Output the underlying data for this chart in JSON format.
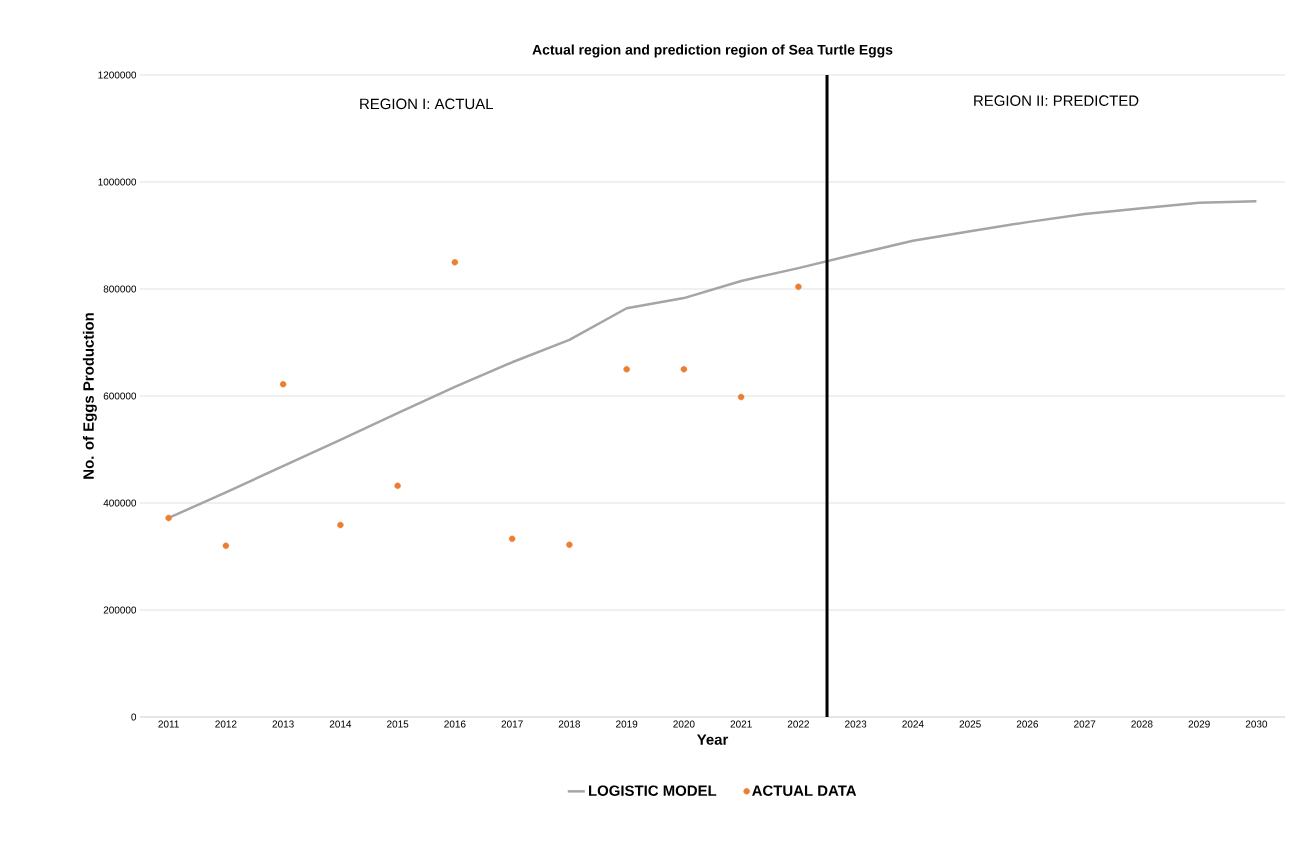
{
  "chart_data": {
    "type": "line",
    "title": "Actual region and prediction region of Sea Turtle Eggs",
    "xlabel": "Year",
    "ylabel": "No. of Eggs Production",
    "xlim": [
      2010.5,
      2030.5
    ],
    "xticks": [
      2011,
      2012,
      2013,
      2014,
      2015,
      2016,
      2017,
      2018,
      2019,
      2020,
      2021,
      2022,
      2023,
      2024,
      2025,
      2026,
      2027,
      2028,
      2029,
      2030
    ],
    "ylim": [
      0,
      1200000
    ],
    "yticks": [
      0,
      200000,
      400000,
      600000,
      800000,
      1000000,
      1200000
    ],
    "grid": "y",
    "legend": "bottom",
    "series": [
      {
        "name": "LOGISTIC MODEL",
        "color": "#a5a5a5",
        "marker": "none",
        "x": [
          2011,
          2012,
          2013,
          2014,
          2015,
          2016,
          2017,
          2018,
          2019,
          2020,
          2021,
          2022,
          2023,
          2024,
          2025,
          2026,
          2027,
          2028,
          2029,
          2030
        ],
        "values": [
          372000,
          420000,
          469000,
          518000,
          568000,
          617000,
          663000,
          705000,
          764000,
          783000,
          815000,
          839000,
          865000,
          890000,
          908000,
          925000,
          940000,
          951000,
          961000,
          964000
        ]
      },
      {
        "name": "ACTUAL DATA",
        "type": "scatter",
        "color": "#ed7d31",
        "marker": "circle",
        "x": [
          2011,
          2012,
          2013,
          2014,
          2015,
          2016,
          2017,
          2018,
          2019,
          2020,
          2021,
          2022
        ],
        "values": [
          372000,
          320000,
          622000,
          359000,
          432000,
          850000,
          333000,
          322000,
          650000,
          650000,
          598000,
          804000
        ]
      }
    ],
    "ref_lines": [
      {
        "axis": "x",
        "value": 2022.5,
        "color": "#000000"
      }
    ],
    "annotations": [
      "REGION I: ACTUAL",
      "REGION II: PREDICTED"
    ]
  }
}
